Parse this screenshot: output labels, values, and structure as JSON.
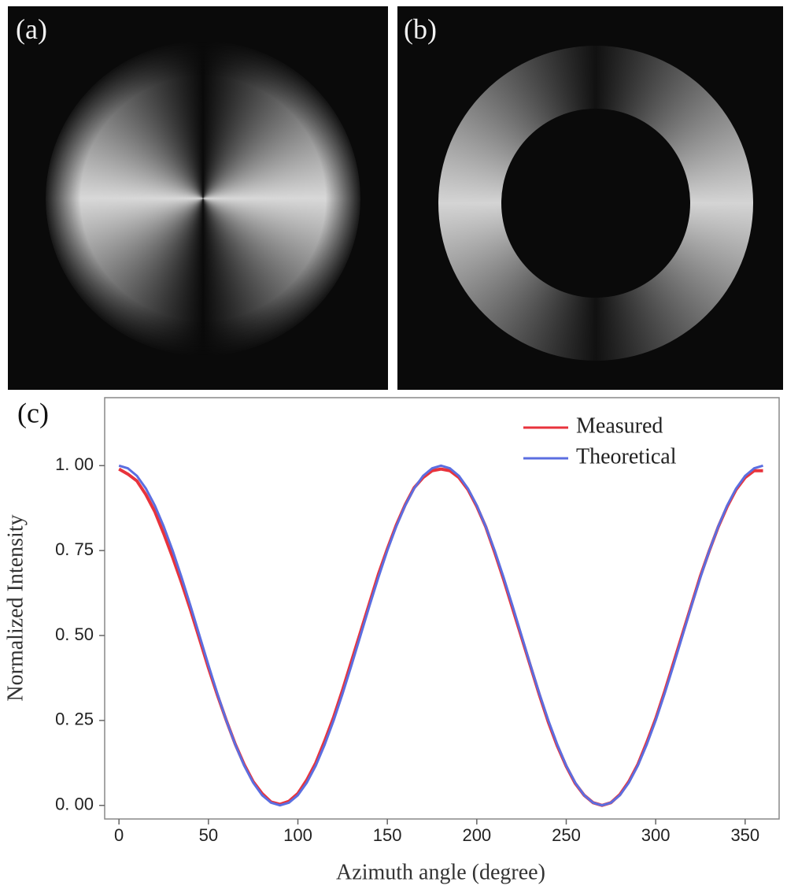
{
  "panels": [
    {
      "label": "(a)"
    },
    {
      "label": "(b)"
    }
  ],
  "chart_data": {
    "type": "line",
    "panel_label": "(c)",
    "x_label": "Azimuth angle (degree)",
    "y_label": "Normalized Intensity",
    "xlim": [
      -8,
      369
    ],
    "ylim": [
      -0.04,
      1.2
    ],
    "xticks": [
      0,
      50,
      100,
      150,
      200,
      250,
      300,
      350
    ],
    "yticks": [
      {
        "value": 0,
        "label": "0. 00"
      },
      {
        "value": 0.25,
        "label": "0. 25"
      },
      {
        "value": 0.5,
        "label": "0. 50"
      },
      {
        "value": 0.75,
        "label": "0. 75"
      },
      {
        "value": 1,
        "label": "1. 00"
      }
    ],
    "legend": "upper right",
    "x": [
      0,
      5,
      10,
      15,
      20,
      25,
      30,
      35,
      40,
      45,
      50,
      55,
      60,
      65,
      70,
      75,
      80,
      85,
      90,
      95,
      100,
      105,
      110,
      115,
      120,
      125,
      130,
      135,
      140,
      145,
      150,
      155,
      160,
      165,
      170,
      175,
      180,
      185,
      190,
      195,
      200,
      205,
      210,
      215,
      220,
      225,
      230,
      235,
      240,
      245,
      250,
      255,
      260,
      265,
      270,
      275,
      280,
      285,
      290,
      295,
      300,
      305,
      310,
      315,
      320,
      325,
      330,
      335,
      340,
      345,
      350,
      355,
      360
    ],
    "series": [
      {
        "name": "Measured",
        "color": "#e8333c",
        "values": [
          0.99,
          0.975,
          0.955,
          0.915,
          0.865,
          0.8,
          0.73,
          0.655,
          0.575,
          0.49,
          0.405,
          0.325,
          0.25,
          0.18,
          0.12,
          0.07,
          0.035,
          0.01,
          0.003,
          0.012,
          0.035,
          0.075,
          0.125,
          0.19,
          0.26,
          0.34,
          0.425,
          0.51,
          0.595,
          0.68,
          0.755,
          0.825,
          0.885,
          0.935,
          0.965,
          0.985,
          0.99,
          0.985,
          0.965,
          0.93,
          0.88,
          0.82,
          0.745,
          0.665,
          0.58,
          0.495,
          0.41,
          0.325,
          0.245,
          0.175,
          0.115,
          0.065,
          0.03,
          0.008,
          0,
          0.008,
          0.032,
          0.07,
          0.12,
          0.185,
          0.255,
          0.335,
          0.42,
          0.505,
          0.59,
          0.675,
          0.75,
          0.82,
          0.88,
          0.93,
          0.965,
          0.985,
          0.985
        ]
      },
      {
        "name": "Theoretical",
        "color": "#5b6ee0",
        "values": [
          1,
          0.992,
          0.97,
          0.933,
          0.883,
          0.821,
          0.75,
          0.671,
          0.587,
          0.5,
          0.413,
          0.329,
          0.25,
          0.179,
          0.117,
          0.067,
          0.03,
          0.008,
          0,
          0.008,
          0.03,
          0.067,
          0.117,
          0.179,
          0.25,
          0.329,
          0.413,
          0.5,
          0.587,
          0.671,
          0.75,
          0.821,
          0.883,
          0.933,
          0.97,
          0.992,
          1,
          0.992,
          0.97,
          0.933,
          0.883,
          0.821,
          0.75,
          0.671,
          0.587,
          0.5,
          0.413,
          0.329,
          0.25,
          0.179,
          0.117,
          0.067,
          0.03,
          0.008,
          0,
          0.008,
          0.03,
          0.067,
          0.117,
          0.179,
          0.25,
          0.329,
          0.413,
          0.5,
          0.587,
          0.671,
          0.75,
          0.821,
          0.883,
          0.933,
          0.97,
          0.992,
          1
        ]
      }
    ]
  }
}
